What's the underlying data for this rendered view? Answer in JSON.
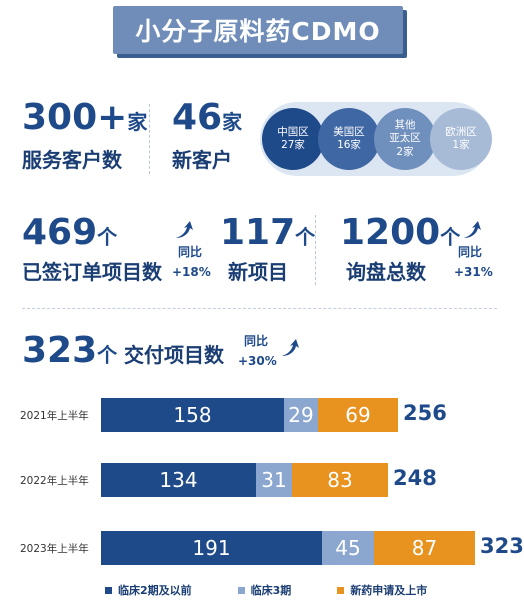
{
  "title": "小分子原料药CDMO",
  "stats": {
    "customers": {
      "value": "300+",
      "unit": "家",
      "label": "服务客户数"
    },
    "new_customers": {
      "value": "46",
      "unit": "家",
      "label": "新客户"
    },
    "regions": [
      {
        "name": "中国区",
        "count": "27家",
        "color": "#1f4a8a"
      },
      {
        "name": "美国区",
        "count": "16家",
        "color": "#3f67a3"
      },
      {
        "name": "其他亚太区",
        "name_lines": [
          "其他",
          "亚太区"
        ],
        "count": "2家",
        "color": "#6f8fbd"
      },
      {
        "name": "欧洲区",
        "count": "1家",
        "color": "#a7bad6"
      }
    ],
    "signed_projects": {
      "value": "469",
      "unit": "个",
      "label": "已签订单项目数",
      "yoy_label": "同比",
      "yoy_value": "+18%"
    },
    "new_projects": {
      "value": "117",
      "unit": "个",
      "label": "新项目"
    },
    "inquiries": {
      "value": "1200",
      "unit": "个",
      "label": "询盘总数",
      "yoy_label": "同比",
      "yoy_value": "+31%"
    },
    "delivered": {
      "value": "323",
      "unit": "个",
      "label": "交付项目数",
      "yoy_label": "同比",
      "yoy_value": "+30%"
    }
  },
  "colors": {
    "accent": "#1f4a8a",
    "light_blue": "#8ba6cf",
    "orange": "#e8921f",
    "title_bg": "#6f8db8"
  },
  "chart_data": {
    "type": "bar",
    "orientation": "horizontal",
    "stacked": true,
    "categories": [
      "2021年上半年",
      "2022年上半年",
      "2023年上半年"
    ],
    "series": [
      {
        "name": "临床2期及以前",
        "values": [
          158,
          134,
          191
        ],
        "color": "#1f4a8a"
      },
      {
        "name": "临床3期",
        "values": [
          29,
          31,
          45
        ],
        "color": "#8ba6cf"
      },
      {
        "name": "新药申请及上市",
        "values": [
          69,
          83,
          87
        ],
        "color": "#e8921f"
      }
    ],
    "totals": [
      256,
      248,
      323
    ],
    "legend_position": "bottom",
    "grid": false
  }
}
